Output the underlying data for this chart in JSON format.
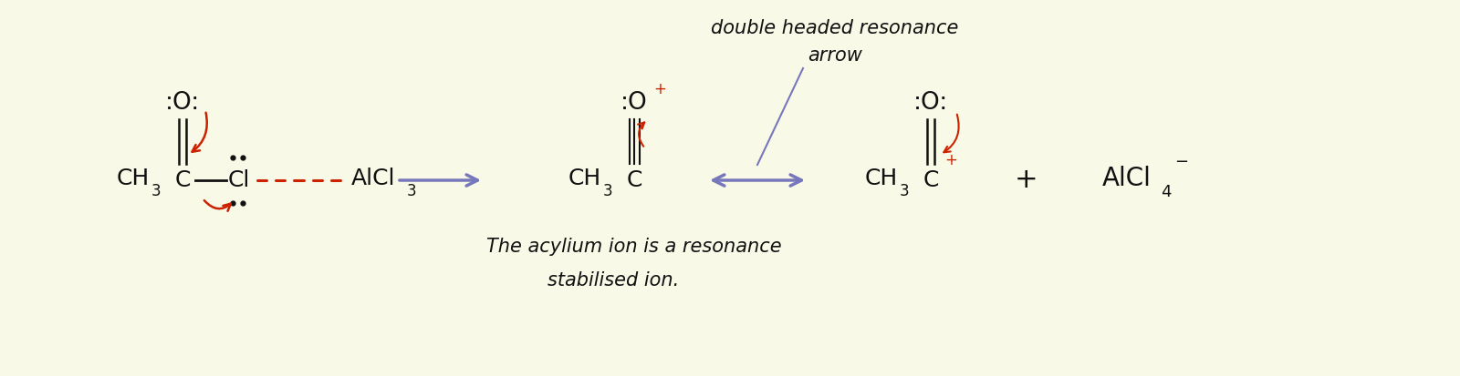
{
  "bg_color": "#f9f9e8",
  "arrow_color": "#7777bb",
  "red_color": "#cc2200",
  "text_color": "#111111",
  "figsize": [
    16.0,
    4.13
  ],
  "dpi": 100,
  "xlim": [
    0,
    16
  ],
  "ylim": [
    0,
    4.13
  ]
}
